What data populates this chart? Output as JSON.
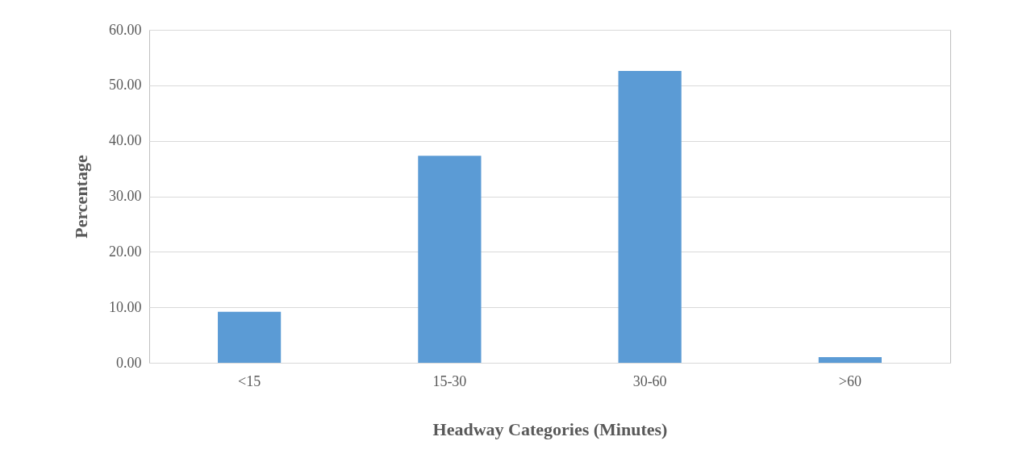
{
  "chart_data": {
    "type": "bar",
    "xlabel": "Headway Categories (Minutes)",
    "ylabel": "Percentage",
    "categories": [
      "<15",
      "15-30",
      "30-60",
      ">60"
    ],
    "values": [
      9.2,
      37.3,
      52.6,
      1.0
    ],
    "color": "#5b9bd5",
    "ylim": [
      0,
      60
    ],
    "yticks": [
      {
        "value": 0,
        "label": "0.00"
      },
      {
        "value": 10,
        "label": "10.00"
      },
      {
        "value": 20,
        "label": "20.00"
      },
      {
        "value": 30,
        "label": "30.00"
      },
      {
        "value": 40,
        "label": "40.00"
      },
      {
        "value": 50,
        "label": "50.00"
      },
      {
        "value": 60,
        "label": "60.00"
      }
    ],
    "grid": "y"
  }
}
